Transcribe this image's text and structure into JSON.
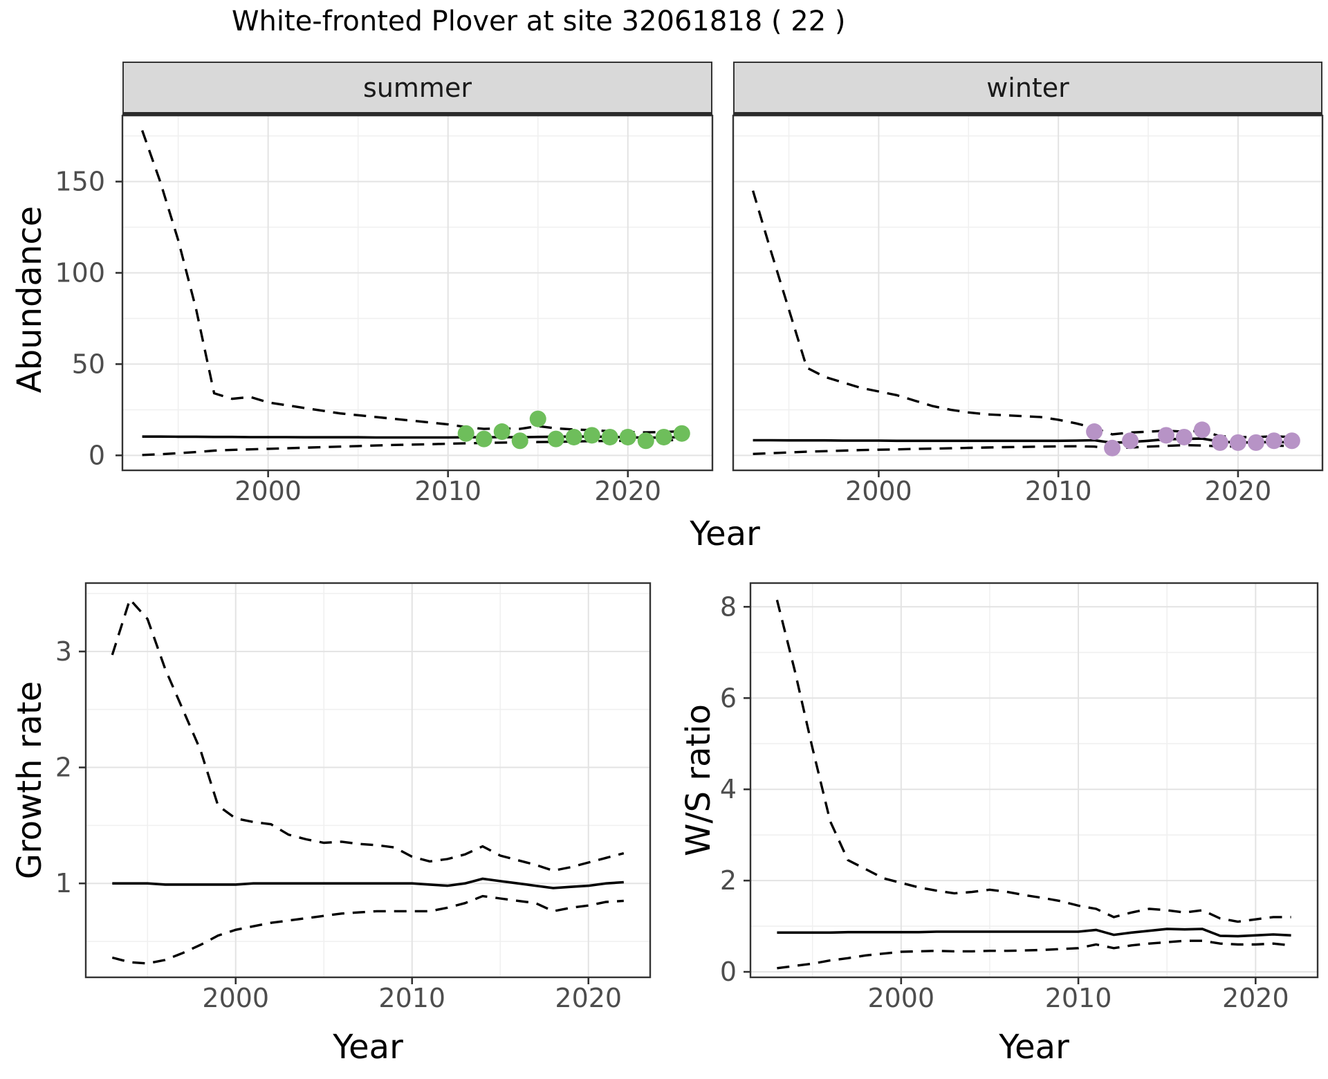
{
  "title": "White-fronted Plover at site 32061818 ( 22 )",
  "colors": {
    "summer_point": "#6EBE5B",
    "winter_point": "#B793C6",
    "line": "#000000",
    "strip_background": "#D9D9D9",
    "panel_border": "#333333",
    "grid_major": "#E3E3E3",
    "grid_minor": "#F0F0F0",
    "tick_label": "#4D4D4D"
  },
  "chart_data": [
    {
      "type": "line",
      "panel": "abundance-summer",
      "facet_label": "summer",
      "xlabel": "Year",
      "ylabel": "Abundance",
      "xlim": [
        1991.9,
        2024.7
      ],
      "ylim": [
        -8.2,
        186.2
      ],
      "grid": true,
      "legend": "none",
      "x_ticks": {
        "values": [
          2000,
          2010,
          2020
        ],
        "labels": [
          "2000",
          "2010",
          "2020"
        ]
      },
      "y_ticks": {
        "values": [
          0,
          50,
          100,
          150
        ],
        "labels": [
          "0",
          "50",
          "100",
          "150"
        ]
      },
      "x_minor": [
        1995,
        2005,
        2015
      ],
      "y_minor": [
        25,
        75,
        125,
        175
      ],
      "x": [
        1993,
        1994,
        1995,
        1996,
        1997,
        1998,
        1999,
        2000,
        2001,
        2002,
        2003,
        2004,
        2005,
        2006,
        2007,
        2008,
        2009,
        2010,
        2011,
        2012,
        2013,
        2014,
        2015,
        2016,
        2017,
        2018,
        2019,
        2020,
        2021,
        2022,
        2023
      ],
      "series": [
        {
          "name": "median",
          "linetype": "solid",
          "values": [
            10.3,
            10.3,
            10.2,
            10.2,
            10.1,
            10.1,
            10.0,
            10.0,
            10.0,
            9.9,
            9.9,
            9.9,
            9.9,
            9.8,
            9.8,
            9.8,
            9.8,
            9.8,
            9.9,
            9.9,
            10.0,
            9.9,
            10.1,
            10.2,
            10.3,
            10.3,
            10.1,
            9.9,
            9.7,
            9.8,
            10.0
          ]
        },
        {
          "name": "upper_95ci",
          "linetype": "dashed",
          "values": [
            178,
            150,
            118,
            80,
            34,
            31,
            32,
            29,
            27.5,
            26,
            24.5,
            23,
            22,
            21,
            20,
            19,
            18,
            17,
            15.5,
            14.5,
            14.8,
            14.5,
            16,
            14.8,
            14.2,
            13.8,
            13.2,
            12.8,
            12.6,
            12.8,
            13.2
          ]
        },
        {
          "name": "lower_95ci",
          "linetype": "dashed",
          "values": [
            0.2,
            0.6,
            1.2,
            1.8,
            2.6,
            3.0,
            3.3,
            3.6,
            3.9,
            4.2,
            4.5,
            4.8,
            5.1,
            5.4,
            5.7,
            5.9,
            6.1,
            6.4,
            6.6,
            6.8,
            7.0,
            7.1,
            7.3,
            7.4,
            7.6,
            7.8,
            7.9,
            8.0,
            8.0,
            8.2,
            8.5
          ]
        }
      ],
      "points": {
        "name": "observed-counts",
        "color": "#6EBE5B",
        "x": [
          2011,
          2012,
          2013,
          2014,
          2015,
          2016,
          2017,
          2018,
          2019,
          2020,
          2021,
          2022,
          2023
        ],
        "y": [
          12,
          9,
          13,
          8,
          20,
          9,
          10,
          11,
          10,
          10,
          8,
          10,
          12
        ]
      }
    },
    {
      "type": "line",
      "panel": "abundance-winter",
      "facet_label": "winter",
      "xlabel": "Year",
      "ylabel": "Abundance",
      "xlim": [
        1991.9,
        2024.7
      ],
      "ylim": [
        -8.2,
        186.2
      ],
      "grid": true,
      "legend": "none",
      "x_ticks": {
        "values": [
          2000,
          2010,
          2020
        ],
        "labels": [
          "2000",
          "2010",
          "2020"
        ]
      },
      "y_ticks": {
        "values": [
          0,
          50,
          100,
          150
        ],
        "labels": [
          "0",
          "50",
          "100",
          "150"
        ]
      },
      "x_minor": [
        1995,
        2005,
        2015
      ],
      "y_minor": [
        25,
        75,
        125,
        175
      ],
      "x": [
        1993,
        1994,
        1995,
        1996,
        1997,
        1998,
        1999,
        2000,
        2001,
        2002,
        2003,
        2004,
        2005,
        2006,
        2007,
        2008,
        2009,
        2010,
        2011,
        2012,
        2013,
        2014,
        2015,
        2016,
        2017,
        2018,
        2019,
        2020,
        2021,
        2022,
        2023
      ],
      "series": [
        {
          "name": "median",
          "linetype": "solid",
          "values": [
            8.3,
            8.3,
            8.2,
            8.2,
            8.2,
            8.1,
            8.1,
            8.1,
            8.0,
            8.0,
            8.0,
            8.0,
            8.0,
            8.0,
            8.0,
            8.0,
            8.0,
            8.0,
            8.1,
            8.3,
            6.9,
            7.3,
            8.0,
            8.8,
            9.0,
            9.2,
            7.5,
            7.0,
            7.2,
            7.3,
            7.2
          ]
        },
        {
          "name": "upper_95ci",
          "linetype": "dashed",
          "values": [
            145,
            112,
            80,
            48,
            43,
            40,
            37,
            35,
            33,
            30,
            27,
            25,
            23.5,
            22.5,
            22,
            21.5,
            21,
            19.5,
            17.5,
            15,
            11.5,
            12.5,
            13,
            13.5,
            13,
            13.5,
            10.5,
            10,
            10,
            10.5,
            10
          ]
        },
        {
          "name": "lower_95ci",
          "linetype": "dashed",
          "values": [
            0.8,
            1.2,
            1.6,
            2.0,
            2.3,
            2.6,
            2.9,
            3.1,
            3.3,
            3.5,
            3.7,
            3.9,
            4.1,
            4.3,
            4.5,
            4.6,
            4.8,
            4.9,
            5.0,
            4.8,
            3.8,
            4.3,
            4.8,
            5.2,
            5.6,
            5.4,
            4.9,
            4.9,
            5.2,
            5.3,
            5.2
          ]
        }
      ],
      "points": {
        "name": "observed-counts",
        "color": "#B793C6",
        "x": [
          2012,
          2013,
          2014,
          2016,
          2017,
          2018,
          2019,
          2020,
          2021,
          2022,
          2023
        ],
        "y": [
          13,
          4,
          8,
          11,
          10,
          14,
          7,
          7,
          7,
          8,
          8
        ]
      }
    },
    {
      "type": "line",
      "panel": "growth-rate",
      "facet_label": "",
      "xlabel": "Year",
      "ylabel": "Growth rate",
      "xlim": [
        1991.5,
        2023.5
      ],
      "ylim": [
        0.19,
        3.59
      ],
      "grid": true,
      "legend": "none",
      "x_ticks": {
        "values": [
          2000,
          2010,
          2020
        ],
        "labels": [
          "2000",
          "2010",
          "2020"
        ]
      },
      "y_ticks": {
        "values": [
          1,
          2,
          3
        ],
        "labels": [
          "1",
          "2",
          "3"
        ]
      },
      "x_minor": [
        1995,
        2005,
        2015
      ],
      "y_minor": [
        0.5,
        1.5,
        2.5,
        3.5
      ],
      "x": [
        1993,
        1994,
        1995,
        1996,
        1997,
        1998,
        1999,
        2000,
        2001,
        2002,
        2003,
        2004,
        2005,
        2006,
        2007,
        2008,
        2009,
        2010,
        2011,
        2012,
        2013,
        2014,
        2015,
        2016,
        2017,
        2018,
        2019,
        2020,
        2021,
        2022
      ],
      "series": [
        {
          "name": "median",
          "linetype": "solid",
          "values": [
            1.0,
            1.0,
            1.0,
            0.99,
            0.99,
            0.99,
            0.99,
            0.99,
            1.0,
            1.0,
            1.0,
            1.0,
            1.0,
            1.0,
            1.0,
            1.0,
            1.0,
            1.0,
            0.99,
            0.98,
            1.0,
            1.04,
            1.02,
            1.0,
            0.98,
            0.96,
            0.97,
            0.98,
            1.0,
            1.01
          ]
        },
        {
          "name": "upper_95ci",
          "linetype": "dashed",
          "values": [
            2.97,
            3.45,
            3.28,
            2.85,
            2.5,
            2.15,
            1.67,
            1.56,
            1.53,
            1.51,
            1.42,
            1.38,
            1.35,
            1.36,
            1.34,
            1.33,
            1.31,
            1.23,
            1.19,
            1.21,
            1.25,
            1.32,
            1.24,
            1.2,
            1.16,
            1.11,
            1.14,
            1.18,
            1.22,
            1.26
          ]
        },
        {
          "name": "lower_95ci",
          "linetype": "dashed",
          "values": [
            0.36,
            0.32,
            0.31,
            0.34,
            0.4,
            0.47,
            0.55,
            0.6,
            0.63,
            0.66,
            0.68,
            0.7,
            0.72,
            0.74,
            0.75,
            0.76,
            0.76,
            0.76,
            0.76,
            0.79,
            0.83,
            0.89,
            0.87,
            0.85,
            0.83,
            0.76,
            0.79,
            0.81,
            0.84,
            0.85
          ]
        }
      ],
      "points": null
    },
    {
      "type": "line",
      "panel": "ws-ratio",
      "facet_label": "",
      "xlabel": "Year",
      "ylabel": "W/S ratio",
      "xlim": [
        1991.5,
        2023.5
      ],
      "ylim": [
        -0.12,
        8.52
      ],
      "grid": true,
      "legend": "none",
      "x_ticks": {
        "values": [
          2000,
          2010,
          2020
        ],
        "labels": [
          "2000",
          "2010",
          "2020"
        ]
      },
      "y_ticks": {
        "values": [
          0,
          2,
          4,
          6,
          8
        ],
        "labels": [
          "0",
          "2",
          "4",
          "6",
          "8"
        ]
      },
      "x_minor": [
        1995,
        2005,
        2015
      ],
      "y_minor": [
        1,
        3,
        5,
        7
      ],
      "x": [
        1993,
        1994,
        1995,
        1996,
        1997,
        1998,
        1999,
        2000,
        2001,
        2002,
        2003,
        2004,
        2005,
        2006,
        2007,
        2008,
        2009,
        2010,
        2011,
        2012,
        2013,
        2014,
        2015,
        2016,
        2017,
        2018,
        2019,
        2020,
        2021,
        2022
      ],
      "series": [
        {
          "name": "median",
          "linetype": "solid",
          "values": [
            0.86,
            0.86,
            0.86,
            0.86,
            0.87,
            0.87,
            0.87,
            0.87,
            0.87,
            0.88,
            0.88,
            0.88,
            0.88,
            0.88,
            0.88,
            0.88,
            0.88,
            0.88,
            0.92,
            0.81,
            0.86,
            0.9,
            0.94,
            0.93,
            0.94,
            0.79,
            0.78,
            0.8,
            0.82,
            0.8
          ]
        },
        {
          "name": "upper_95ci",
          "linetype": "dashed",
          "values": [
            8.15,
            6.6,
            4.9,
            3.3,
            2.45,
            2.25,
            2.05,
            1.95,
            1.85,
            1.78,
            1.72,
            1.75,
            1.8,
            1.75,
            1.68,
            1.62,
            1.55,
            1.45,
            1.38,
            1.2,
            1.3,
            1.38,
            1.35,
            1.3,
            1.35,
            1.17,
            1.1,
            1.15,
            1.2,
            1.2
          ]
        },
        {
          "name": "lower_95ci",
          "linetype": "dashed",
          "values": [
            0.08,
            0.13,
            0.18,
            0.25,
            0.3,
            0.36,
            0.4,
            0.44,
            0.45,
            0.46,
            0.45,
            0.45,
            0.46,
            0.46,
            0.47,
            0.48,
            0.5,
            0.52,
            0.6,
            0.52,
            0.58,
            0.62,
            0.65,
            0.68,
            0.68,
            0.62,
            0.6,
            0.6,
            0.62,
            0.58
          ]
        }
      ],
      "points": null
    }
  ]
}
